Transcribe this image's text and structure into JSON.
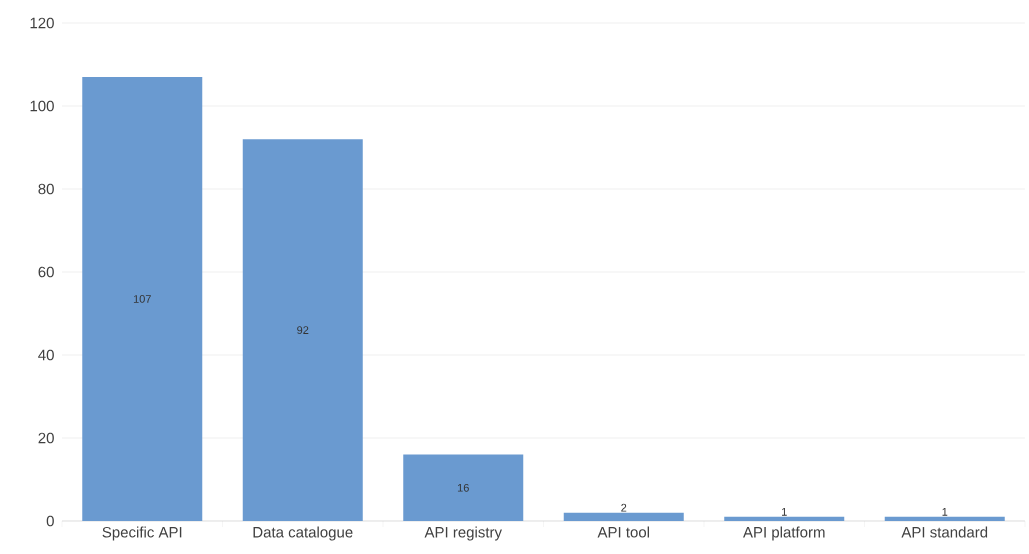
{
  "chart_data": {
    "type": "bar",
    "categories": [
      "Specific API",
      "Data catalogue",
      "API registry",
      "API tool",
      "API platform",
      "API standard"
    ],
    "values": [
      107,
      92,
      16,
      2,
      1,
      1
    ],
    "color": "#6a9ad0",
    "ylim": [
      0,
      120
    ],
    "yticks": [
      0,
      20,
      40,
      60,
      80,
      100,
      120
    ],
    "grid": "y",
    "data_labels": true
  }
}
